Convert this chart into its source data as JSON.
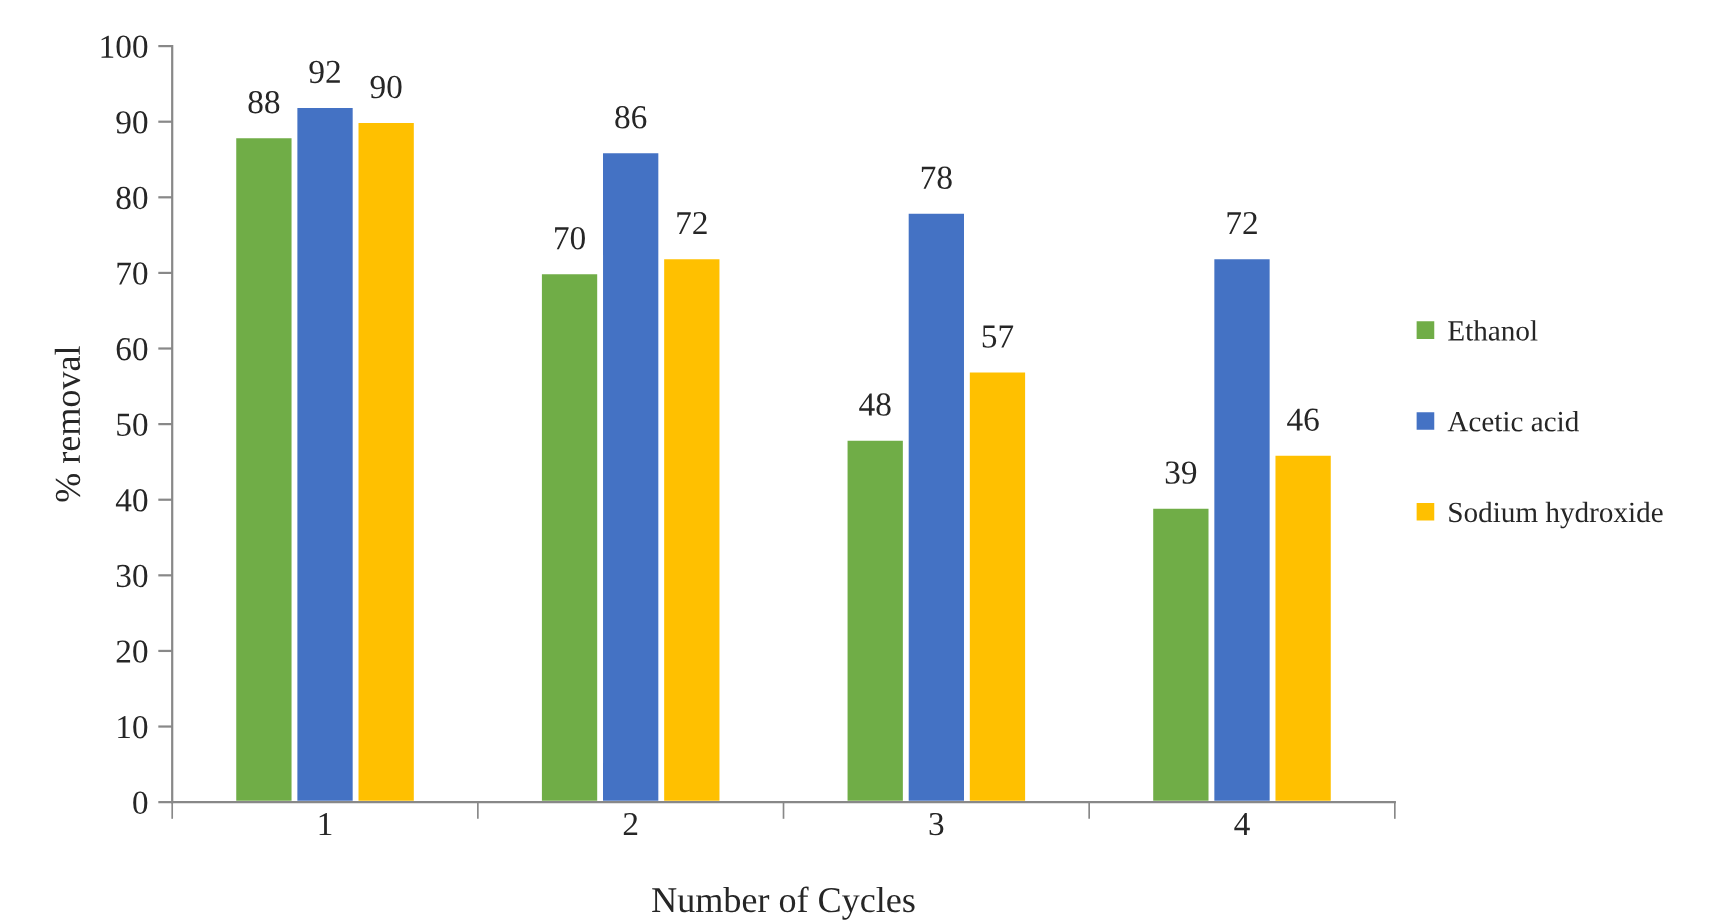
{
  "chart_data": {
    "type": "bar",
    "xlabel": "Number of Cycles",
    "ylabel": "% removal",
    "categories": [
      "1",
      "2",
      "3",
      "4"
    ],
    "series": [
      {
        "name": "Ethanol",
        "color": "#70ad47",
        "values": [
          88,
          70,
          48,
          39
        ]
      },
      {
        "name": "Acetic acid",
        "color": "#4472c4",
        "values": [
          92,
          86,
          78,
          72
        ]
      },
      {
        "name": "Sodium hydroxide",
        "color": "#ffc000",
        "values": [
          90,
          72,
          57,
          46
        ]
      }
    ],
    "ylim": [
      0,
      100
    ],
    "yticks": [
      0,
      10,
      20,
      30,
      40,
      50,
      60,
      70,
      80,
      90,
      100
    ],
    "data_labels": true,
    "grid": false,
    "legend": "right"
  }
}
